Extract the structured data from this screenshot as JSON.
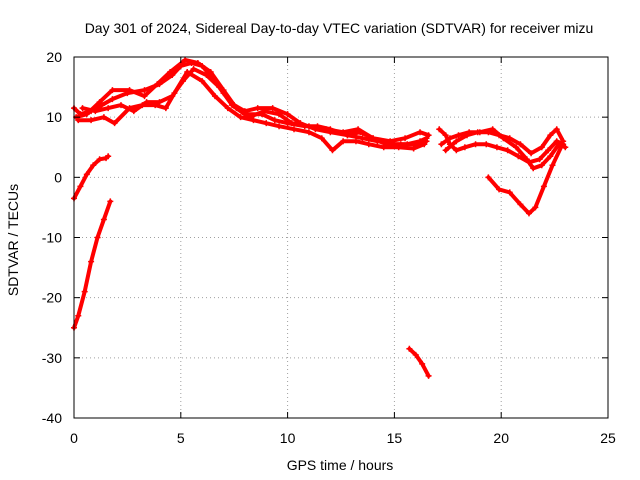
{
  "chart_data": {
    "type": "scatter",
    "title": "Day 301 of 2024, Sidereal Day-to-day VTEC variation (SDTVAR) for receiver mizu",
    "xlabel": "GPS time / hours",
    "ylabel": "SDTVAR / TECUs",
    "xlim": [
      0,
      25
    ],
    "ylim": [
      -40,
      20
    ],
    "xticks": [
      0,
      5,
      10,
      15,
      20,
      25
    ],
    "yticks": [
      -40,
      -30,
      -20,
      -10,
      0,
      10,
      20
    ],
    "grid": true,
    "legend": "none",
    "series_color": "#ff0000",
    "series": [
      {
        "name": "track-1",
        "points": [
          [
            0.0,
            11.5
          ],
          [
            0.3,
            10.5
          ],
          [
            0.8,
            11.0
          ],
          [
            1.3,
            12.0
          ],
          [
            1.8,
            13.0
          ],
          [
            2.5,
            14.0
          ],
          [
            3.3,
            14.5
          ],
          [
            4.0,
            15.5
          ],
          [
            4.6,
            17.0
          ],
          [
            5.0,
            18.5
          ],
          [
            5.5,
            19.0
          ],
          [
            6.0,
            18.5
          ],
          [
            6.5,
            16.5
          ],
          [
            7.0,
            14.0
          ],
          [
            7.5,
            12.0
          ],
          [
            8.0,
            11.0
          ],
          [
            8.6,
            11.5
          ],
          [
            9.3,
            11.5
          ],
          [
            10.0,
            10.5
          ],
          [
            10.6,
            9.0
          ],
          [
            11.3,
            8.0
          ],
          [
            12.0,
            7.5
          ],
          [
            12.8,
            7.0
          ],
          [
            13.5,
            6.5
          ],
          [
            14.2,
            6.0
          ],
          [
            15.0,
            5.5
          ],
          [
            15.6,
            5.5
          ],
          [
            16.2,
            6.0
          ],
          [
            16.5,
            6.5
          ]
        ]
      },
      {
        "name": "track-2",
        "points": [
          [
            0.1,
            10.0
          ],
          [
            0.6,
            10.5
          ],
          [
            1.2,
            12.5
          ],
          [
            1.8,
            14.5
          ],
          [
            2.6,
            14.5
          ],
          [
            3.3,
            13.5
          ],
          [
            3.9,
            15.5
          ],
          [
            4.5,
            17.5
          ],
          [
            5.2,
            19.5
          ],
          [
            5.8,
            19.0
          ],
          [
            6.4,
            17.5
          ],
          [
            7.0,
            14.5
          ],
          [
            7.6,
            11.5
          ],
          [
            8.2,
            10.0
          ],
          [
            8.9,
            11.0
          ],
          [
            9.6,
            10.5
          ],
          [
            10.2,
            9.0
          ],
          [
            11.0,
            8.5
          ],
          [
            11.8,
            8.0
          ],
          [
            12.6,
            7.5
          ],
          [
            13.3,
            8.0
          ],
          [
            14.0,
            6.5
          ],
          [
            14.8,
            6.0
          ],
          [
            15.5,
            6.5
          ],
          [
            16.2,
            7.5
          ],
          [
            16.6,
            7.0
          ]
        ]
      },
      {
        "name": "track-3",
        "points": [
          [
            0.2,
            9.5
          ],
          [
            0.8,
            9.5
          ],
          [
            1.4,
            10.0
          ],
          [
            1.9,
            9.0
          ],
          [
            2.6,
            11.5
          ],
          [
            3.2,
            12.0
          ],
          [
            3.8,
            12.0
          ],
          [
            4.3,
            11.5
          ],
          [
            4.7,
            14.0
          ],
          [
            5.3,
            17.5
          ],
          [
            6.0,
            16.0
          ],
          [
            6.6,
            13.5
          ],
          [
            7.2,
            11.5
          ],
          [
            7.8,
            10.0
          ],
          [
            8.4,
            9.5
          ],
          [
            9.0,
            9.0
          ],
          [
            9.6,
            8.5
          ],
          [
            10.3,
            8.0
          ],
          [
            11.0,
            7.5
          ],
          [
            11.6,
            6.5
          ],
          [
            12.1,
            4.5
          ],
          [
            12.6,
            6.0
          ],
          [
            13.2,
            6.0
          ],
          [
            13.8,
            5.5
          ],
          [
            14.5,
            5.0
          ],
          [
            15.2,
            5.0
          ],
          [
            15.9,
            4.8
          ],
          [
            16.4,
            5.5
          ]
        ]
      },
      {
        "name": "track-4",
        "points": [
          [
            0.4,
            11.5
          ],
          [
            1.0,
            11.0
          ],
          [
            1.6,
            11.5
          ],
          [
            2.2,
            12.0
          ],
          [
            2.8,
            11.0
          ],
          [
            3.4,
            12.5
          ],
          [
            4.0,
            12.5
          ],
          [
            4.6,
            13.5
          ],
          [
            5.1,
            16.0
          ],
          [
            5.6,
            18.0
          ],
          [
            6.2,
            17.0
          ],
          [
            6.8,
            15.0
          ],
          [
            7.4,
            12.0
          ],
          [
            8.0,
            10.5
          ],
          [
            8.8,
            10.5
          ],
          [
            9.4,
            9.5
          ],
          [
            10.0,
            9.0
          ],
          [
            10.8,
            8.5
          ],
          [
            11.4,
            8.5
          ],
          [
            12.0,
            8.0
          ],
          [
            12.8,
            7.0
          ],
          [
            13.4,
            7.5
          ],
          [
            14.0,
            6.5
          ],
          [
            14.6,
            5.5
          ],
          [
            15.3,
            5.5
          ],
          [
            16.0,
            5.5
          ],
          [
            16.5,
            6.0
          ]
        ]
      },
      {
        "name": "track-5",
        "points": [
          [
            17.1,
            8.0
          ],
          [
            17.4,
            7.0
          ],
          [
            17.6,
            5.5
          ],
          [
            17.9,
            4.5
          ],
          [
            18.3,
            5.0
          ],
          [
            18.8,
            5.5
          ],
          [
            19.3,
            5.5
          ],
          [
            19.8,
            5.0
          ],
          [
            20.3,
            4.5
          ],
          [
            20.8,
            3.5
          ],
          [
            21.3,
            2.5
          ],
          [
            21.8,
            3.0
          ],
          [
            22.2,
            4.5
          ],
          [
            22.6,
            6.0
          ],
          [
            22.9,
            5.5
          ]
        ]
      },
      {
        "name": "track-6",
        "points": [
          [
            17.4,
            4.5
          ],
          [
            17.9,
            6.0
          ],
          [
            18.4,
            7.0
          ],
          [
            18.9,
            7.5
          ],
          [
            19.4,
            7.5
          ],
          [
            19.9,
            7.0
          ],
          [
            20.4,
            6.5
          ],
          [
            20.9,
            5.5
          ],
          [
            21.4,
            4.0
          ],
          [
            21.9,
            5.0
          ],
          [
            22.3,
            7.0
          ],
          [
            22.6,
            8.0
          ],
          [
            22.9,
            6.0
          ]
        ]
      },
      {
        "name": "track-7",
        "points": [
          [
            17.2,
            5.5
          ],
          [
            17.6,
            6.5
          ],
          [
            18.0,
            7.0
          ],
          [
            18.5,
            7.5
          ],
          [
            19.0,
            7.5
          ],
          [
            19.6,
            8.0
          ],
          [
            20.1,
            6.5
          ],
          [
            20.7,
            5.0
          ],
          [
            21.2,
            3.0
          ],
          [
            21.5,
            1.5
          ],
          [
            21.9,
            2.0
          ],
          [
            22.3,
            3.5
          ],
          [
            22.7,
            5.5
          ],
          [
            23.0,
            5.0
          ]
        ]
      },
      {
        "name": "track-8",
        "points": [
          [
            19.4,
            0.0
          ],
          [
            19.9,
            -2.0
          ],
          [
            20.4,
            -2.5
          ],
          [
            20.9,
            -4.5
          ],
          [
            21.3,
            -6.0
          ],
          [
            21.6,
            -5.0
          ],
          [
            22.0,
            -1.5
          ],
          [
            22.4,
            2.0
          ],
          [
            22.8,
            5.0
          ]
        ]
      },
      {
        "name": "track-9",
        "points": [
          [
            0.0,
            -3.5
          ],
          [
            0.3,
            -1.5
          ],
          [
            0.6,
            0.5
          ],
          [
            0.9,
            2.0
          ],
          [
            1.2,
            3.0
          ],
          [
            1.5,
            3.2
          ],
          [
            1.6,
            3.5
          ]
        ]
      },
      {
        "name": "track-10",
        "points": [
          [
            0.0,
            -25.0
          ],
          [
            0.2,
            -23.0
          ],
          [
            0.5,
            -19.0
          ],
          [
            0.8,
            -14.0
          ],
          [
            1.1,
            -10.0
          ],
          [
            1.4,
            -7.0
          ],
          [
            1.7,
            -4.0
          ]
        ]
      },
      {
        "name": "track-11",
        "points": [
          [
            15.7,
            -28.5
          ],
          [
            16.0,
            -29.5
          ],
          [
            16.3,
            -31.0
          ],
          [
            16.6,
            -33.0
          ]
        ]
      }
    ]
  }
}
